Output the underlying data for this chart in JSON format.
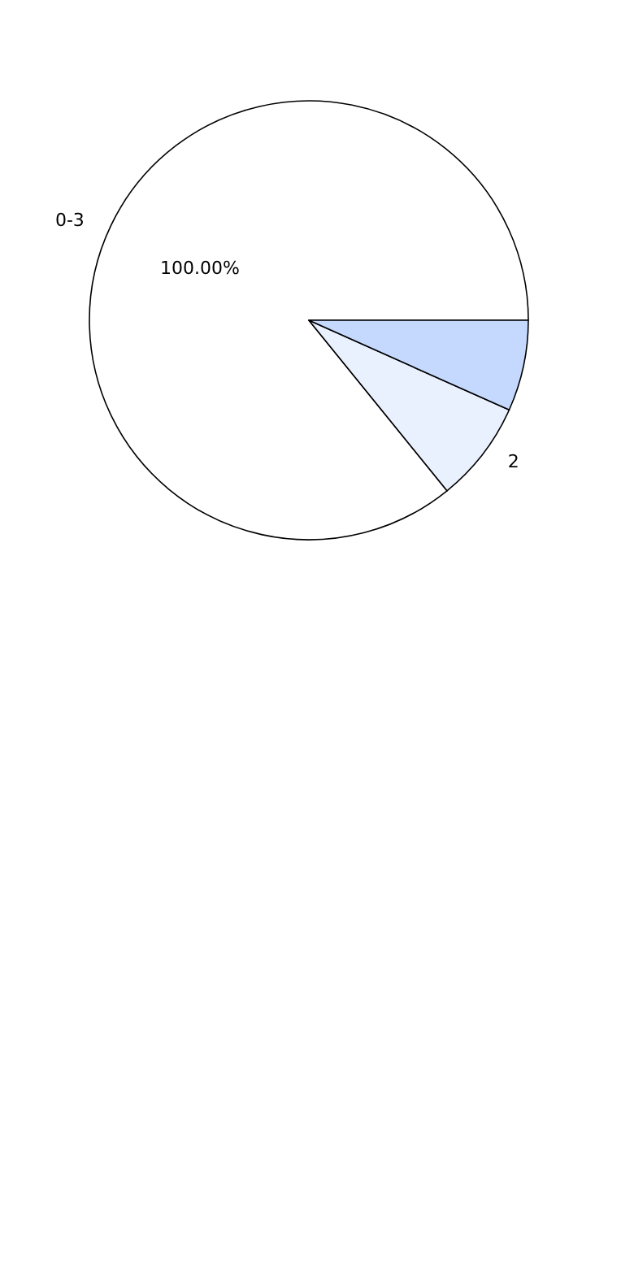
{
  "chart_data": {
    "type": "pie",
    "categories": [
      "0-3",
      "2",
      null
    ],
    "values": [
      100,
      8.7,
      7.8
    ],
    "colors": [
      "#ffffff",
      "#eaf1fe",
      "#c5d9fe"
    ],
    "value_labels": [
      "100.00%",
      null,
      null
    ],
    "legend": false
  }
}
